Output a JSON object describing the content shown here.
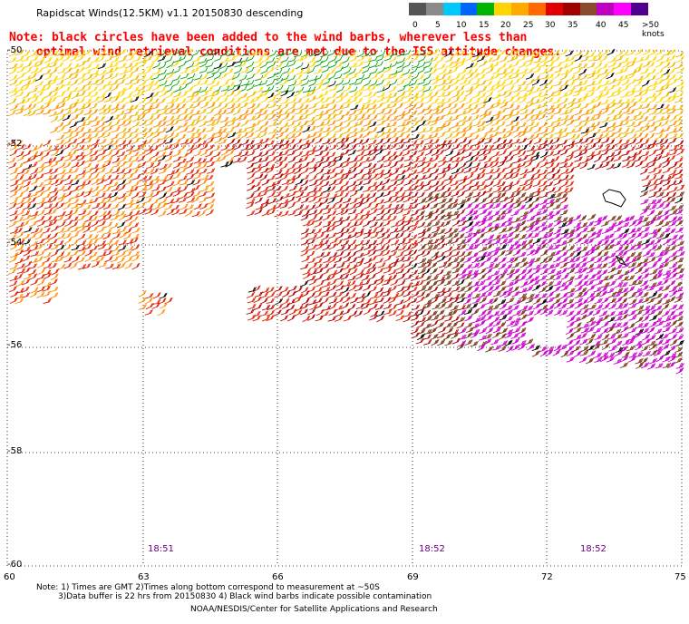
{
  "title": "Rapidscat Winds(12.5KM) v1.1 20150830 descending",
  "note_line1": "Note: black circles have been added to the wind barbs, wherever less than",
  "note_line2": "optimal wind retrieval conditions are met due to the ISS attitude changes.",
  "legend": {
    "labels": [
      "0",
      "5",
      "10",
      "15",
      "20",
      "25",
      "30",
      "35",
      "40",
      "45",
      ">50 knots"
    ],
    "colors": [
      "#555555",
      "#8a8a8a",
      "#00c8ff",
      "#0064ff",
      "#00b400",
      "#ffd400",
      "#ffaa00",
      "#ff6a00",
      "#e00000",
      "#a00000",
      "#8b4a2b",
      "#c000c0",
      "#ff00ff",
      "#50008c"
    ]
  },
  "lat_labels": [
    "-50",
    "-52",
    "-54",
    "-56",
    "-58",
    "-60"
  ],
  "lon_labels": [
    "60",
    "63",
    "66",
    "69",
    "72",
    "75"
  ],
  "time_labels": [
    "18:51",
    "18:52",
    "18:52"
  ],
  "footnotes": {
    "line1": "Note: 1) Times are GMT 2)Times along bottom correspond to measurement at ~50S",
    "line2": "3)Data buffer is 22 hrs from 20150830 4) Black wind barbs indicate possible contamination",
    "line3": "NOAA/NESDIS/Center for Satellite Applications and Research"
  },
  "colors": {
    "yellow": "#ffd400",
    "gold": "#f0b400",
    "orange": "#ff8c00",
    "red": "#e02000",
    "darkred": "#b00000",
    "brown": "#7a3a1a",
    "magenta": "#cc00cc",
    "green": "#00a000",
    "black": "#000000"
  }
}
